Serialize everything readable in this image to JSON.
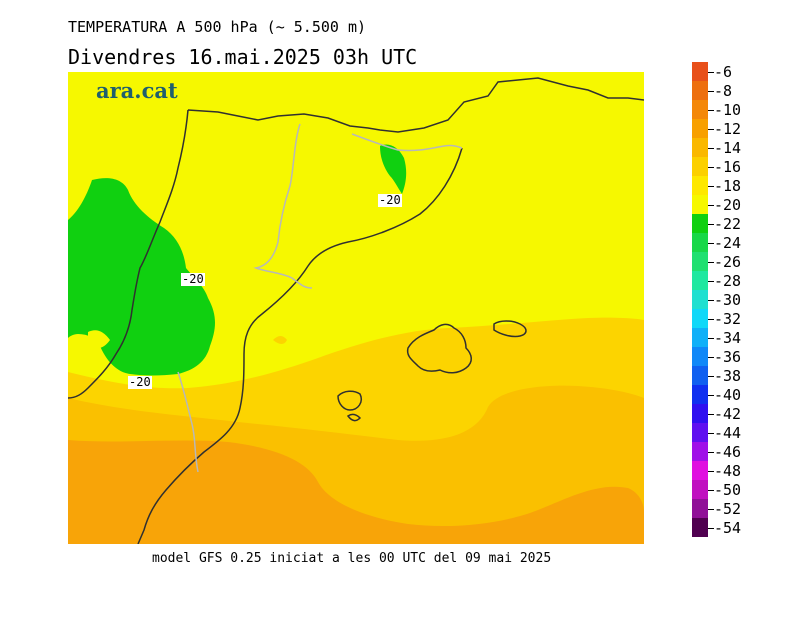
{
  "header": {
    "title": "TEMPERATURA A 500 hPa (~ 5.500 m)",
    "subtitle": "Divendres  16.mai.2025 03h UTC"
  },
  "footer": {
    "text": "model GFS 0.25 iniciat a les 00 UTC del 09 mai 2025"
  },
  "map": {
    "logo": "ara.cat",
    "contour_labels": [
      "-20",
      "-20",
      "-20"
    ]
  },
  "legend": {
    "labels": [
      "-6",
      "-8",
      "-10",
      "-12",
      "-14",
      "-16",
      "-18",
      "-20",
      "-22",
      "-24",
      "-26",
      "-28",
      "-30",
      "-32",
      "-34",
      "-36",
      "-38",
      "-40",
      "-42",
      "-44",
      "-46",
      "-48",
      "-50",
      "-52",
      "-54"
    ],
    "colors": [
      "#e8501a",
      "#ed6f0f",
      "#f48808",
      "#f8a000",
      "#fab800",
      "#fcd000",
      "#fee800",
      "#f6f800",
      "#10d010",
      "#18d848",
      "#20e070",
      "#20e8a0",
      "#20e0d0",
      "#10d8f8",
      "#10b0f8",
      "#1088f8",
      "#1060f0",
      "#1030f0",
      "#3010f0",
      "#6010f0",
      "#a010e8",
      "#e010e0",
      "#c010c0",
      "#901098",
      "#500050"
    ]
  },
  "colors": {
    "field_warm": "#f8a408",
    "field_orange": "#fac000",
    "field_light_orange": "#fcd400",
    "field_yellow": "#f6f800",
    "field_green": "#10d010",
    "coast": "#303030",
    "border": "#b8b8b8"
  }
}
